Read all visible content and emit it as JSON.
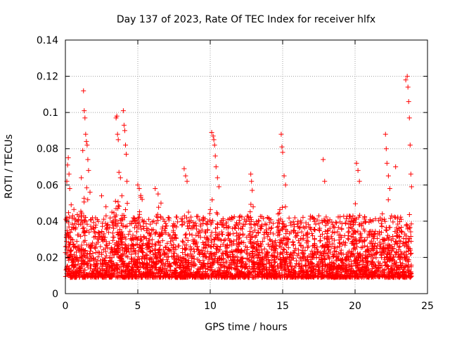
{
  "chart_data": {
    "type": "scatter",
    "title": "Day 137 of 2023, Rate Of TEC Index for receiver hlfx",
    "xlabel": "GPS time / hours",
    "ylabel": "ROTI / TECUs",
    "xlim": [
      0,
      25
    ],
    "ylim": [
      0,
      0.14
    ],
    "xticks": [
      0,
      5,
      10,
      15,
      20,
      25
    ],
    "xtick_labels": [
      "0",
      "5",
      "10",
      "15",
      "20",
      "25"
    ],
    "yticks": [
      0,
      0.02,
      0.04,
      0.06,
      0.08,
      0.1,
      0.12,
      0.14
    ],
    "ytick_labels": [
      "0",
      "0.02",
      "0.04",
      "0.06",
      "0.08",
      "0.1",
      "0.12",
      "0.14"
    ],
    "grid": true,
    "marker": "+",
    "series": [
      {
        "name": "ROTI",
        "color": "#ff0000",
        "points": [
          [
            0.1,
            0.062
          ],
          [
            0.15,
            0.071
          ],
          [
            0.2,
            0.075
          ],
          [
            0.25,
            0.066
          ],
          [
            0.3,
            0.058
          ],
          [
            0.4,
            0.049
          ],
          [
            0.5,
            0.043
          ],
          [
            1.1,
            0.064
          ],
          [
            1.2,
            0.079
          ],
          [
            1.25,
            0.112
          ],
          [
            1.3,
            0.101
          ],
          [
            1.35,
            0.097
          ],
          [
            1.4,
            0.088
          ],
          [
            1.45,
            0.084
          ],
          [
            1.5,
            0.082
          ],
          [
            1.55,
            0.074
          ],
          [
            1.6,
            0.068
          ],
          [
            1.7,
            0.056
          ],
          [
            2.5,
            0.054
          ],
          [
            2.8,
            0.048
          ],
          [
            3.5,
            0.097
          ],
          [
            3.55,
            0.098
          ],
          [
            3.6,
            0.088
          ],
          [
            3.65,
            0.085
          ],
          [
            3.7,
            0.067
          ],
          [
            3.8,
            0.064
          ],
          [
            3.9,
            0.054
          ],
          [
            4.0,
            0.101
          ],
          [
            4.05,
            0.093
          ],
          [
            4.1,
            0.09
          ],
          [
            4.15,
            0.082
          ],
          [
            4.2,
            0.077
          ],
          [
            4.25,
            0.062
          ],
          [
            5.0,
            0.06
          ],
          [
            5.1,
            0.058
          ],
          [
            5.3,
            0.052
          ],
          [
            6.2,
            0.058
          ],
          [
            6.4,
            0.055
          ],
          [
            6.6,
            0.05
          ],
          [
            8.2,
            0.069
          ],
          [
            8.3,
            0.065
          ],
          [
            8.4,
            0.062
          ],
          [
            8.5,
            0.045
          ],
          [
            10.1,
            0.089
          ],
          [
            10.2,
            0.087
          ],
          [
            10.25,
            0.085
          ],
          [
            10.3,
            0.082
          ],
          [
            10.35,
            0.076
          ],
          [
            10.4,
            0.07
          ],
          [
            10.5,
            0.064
          ],
          [
            10.6,
            0.059
          ],
          [
            12.8,
            0.066
          ],
          [
            12.85,
            0.062
          ],
          [
            12.9,
            0.057
          ],
          [
            14.9,
            0.088
          ],
          [
            14.95,
            0.081
          ],
          [
            15.0,
            0.078
          ],
          [
            15.1,
            0.065
          ],
          [
            15.2,
            0.06
          ],
          [
            17.8,
            0.074
          ],
          [
            17.9,
            0.062
          ],
          [
            20.1,
            0.072
          ],
          [
            20.2,
            0.068
          ],
          [
            20.3,
            0.062
          ],
          [
            22.1,
            0.088
          ],
          [
            22.15,
            0.08
          ],
          [
            22.2,
            0.072
          ],
          [
            22.3,
            0.065
          ],
          [
            22.4,
            0.058
          ],
          [
            22.8,
            0.07
          ],
          [
            23.5,
            0.118
          ],
          [
            23.6,
            0.12
          ],
          [
            23.65,
            0.114
          ],
          [
            23.7,
            0.106
          ],
          [
            23.75,
            0.097
          ],
          [
            23.8,
            0.082
          ],
          [
            23.85,
            0.066
          ],
          [
            23.9,
            0.059
          ]
        ],
        "bulk": {
          "x_range": [
            0,
            23.9
          ],
          "y_floor": 0.003,
          "typical_max": 0.04,
          "count": 3800
        }
      }
    ]
  }
}
